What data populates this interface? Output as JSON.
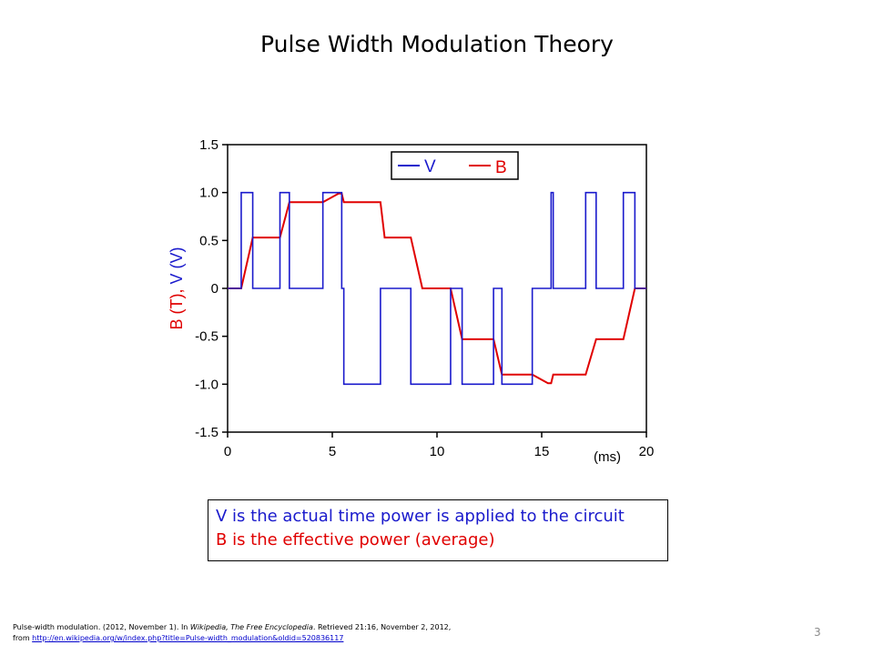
{
  "slide": {
    "title": "Pulse Width Modulation Theory",
    "page_number": "3"
  },
  "caption": {
    "line1": "V is the actual time power is applied to the circuit",
    "line2": "B is the effective power (average)"
  },
  "citation": {
    "line1_a": "Pulse-width modulation. (2012, November 1). In ",
    "line1_italic": "Wikipedia, The Free Encyclopedia",
    "line1_b": ". Retrieved 21:16, November 2, 2012,",
    "line2_prefix": "from ",
    "link": "http://en.wikipedia.org/w/index.php?title=Pulse-width_modulation&oldid=520836117"
  },
  "colors": {
    "V": "#1a1acc",
    "B": "#e00000"
  },
  "chart_data": {
    "type": "line",
    "xlim": [
      0,
      20
    ],
    "ylim": [
      -1.5,
      1.5
    ],
    "x_ticks": [
      0,
      5,
      10,
      15,
      20
    ],
    "x_tick_labels": [
      "0",
      "5",
      "10",
      "15",
      "20"
    ],
    "y_ticks": [
      1.5,
      1.0,
      0.5,
      0,
      -0.5,
      -1.0,
      -1.5
    ],
    "y_tick_labels": [
      "1.5",
      "1.0",
      "0.5",
      "0",
      "-0.5",
      "-1.0",
      "-1.5"
    ],
    "x_unit_label": "(ms)",
    "ylabel_B": "B (T),",
    "ylabel_V": " V (V)",
    "legend_position": "top-center",
    "series": [
      {
        "name": "V",
        "color": "#1a1acc",
        "x": [
          0,
          0.65,
          0.65,
          1.2,
          1.2,
          2.5,
          2.5,
          2.95,
          2.95,
          4.55,
          4.55,
          5.45,
          5.45,
          5.55,
          5.55,
          7.3,
          7.3,
          8.75,
          8.75,
          10.65,
          10.65,
          11.2,
          11.2,
          12.7,
          12.7,
          13.1,
          13.1,
          14.55,
          14.55,
          15.45,
          15.45,
          15.55,
          15.55,
          17.1,
          17.1,
          17.6,
          17.6,
          18.9,
          18.9,
          19.45,
          19.45,
          20
        ],
        "y": [
          0,
          0,
          1,
          1,
          0,
          0,
          1,
          1,
          0,
          0,
          1,
          1,
          0,
          0,
          -1,
          -1,
          0,
          0,
          -1,
          -1,
          0,
          0,
          -1,
          -1,
          0,
          0,
          -1,
          -1,
          0,
          0,
          1,
          1,
          0,
          0,
          1,
          1,
          0,
          0,
          1,
          1,
          0,
          0
        ]
      },
      {
        "name": "B",
        "color": "#e00000",
        "x": [
          0,
          0.65,
          1.2,
          2.5,
          2.95,
          4.55,
          5.3,
          5.45,
          5.55,
          7.3,
          7.5,
          8.75,
          9.3,
          10.65,
          11.2,
          12.7,
          13.1,
          14.55,
          15.3,
          15.45,
          15.55,
          17.1,
          17.6,
          18.9,
          19.45,
          20
        ],
        "y": [
          0,
          0,
          0.53,
          0.53,
          0.9,
          0.9,
          0.99,
          0.99,
          0.9,
          0.9,
          0.53,
          0.53,
          0,
          0,
          -0.53,
          -0.53,
          -0.9,
          -0.9,
          -0.99,
          -0.99,
          -0.9,
          -0.9,
          -0.53,
          -0.53,
          0,
          0
        ]
      }
    ]
  }
}
